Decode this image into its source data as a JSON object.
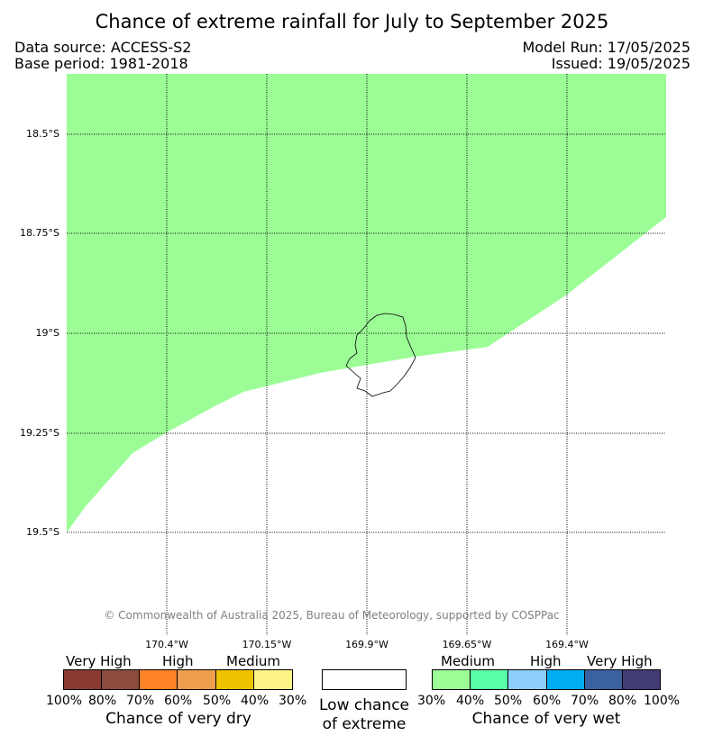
{
  "title": "Chance of extreme rainfall for July to September 2025",
  "meta": {
    "data_source": "Data source: ACCESS-S2",
    "base_period": "Base period: 1981-2018",
    "model_run": "Model Run: 17/05/2025",
    "issued": "Issued: 19/05/2025"
  },
  "map": {
    "land_fill": "#9cfd97",
    "lat_labels": [
      "18.5°S",
      "18.75°S",
      "19°S",
      "19.25°S",
      "19.5°S"
    ],
    "lon_labels": [
      "170.4°W",
      "170.15°W",
      "169.9°W",
      "169.65°W",
      "169.4°W"
    ],
    "copyright": "© Commonwealth of Australia 2025, Bureau of Meteorology, supported by COSPPac"
  },
  "legend": {
    "dry": {
      "cat_labels": [
        "Very High",
        "High",
        "Medium"
      ],
      "colors": [
        "#8b3a32",
        "#8b4c3c",
        "#ff8326",
        "#ee9c4e",
        "#efc300",
        "#fdf687"
      ],
      "ticks": [
        "100%",
        "80%",
        "70%",
        "60%",
        "50%",
        "40%",
        "30%"
      ],
      "caption": "Chance of very dry"
    },
    "neutral": {
      "color": "#ffffff",
      "caption_line1": "Low chance",
      "caption_line2": "of extreme"
    },
    "wet": {
      "cat_labels": [
        "Medium",
        "High",
        "Very High"
      ],
      "colors": [
        "#9cfd97",
        "#58ffa7",
        "#8ccdfb",
        "#00aef1",
        "#3b61a1",
        "#413b76"
      ],
      "ticks": [
        "30%",
        "40%",
        "50%",
        "60%",
        "70%",
        "80%",
        "100%"
      ],
      "caption": "Chance of very wet"
    }
  }
}
